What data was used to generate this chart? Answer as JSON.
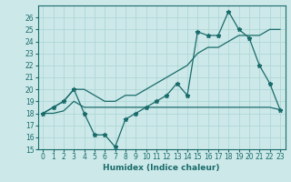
{
  "x": [
    0,
    1,
    2,
    3,
    4,
    5,
    6,
    7,
    8,
    9,
    10,
    11,
    12,
    13,
    14,
    15,
    16,
    17,
    18,
    19,
    20,
    21,
    22,
    23
  ],
  "line_zigzag": [
    18,
    18.5,
    19,
    20,
    18,
    16.2,
    16.2,
    15.2,
    17.5,
    18,
    18.5,
    19,
    19.5,
    20.5,
    19.5,
    24.8,
    24.5,
    24.5,
    26.5,
    25,
    24.3,
    22,
    20.5,
    18.3
  ],
  "line_upper": [
    18,
    18.5,
    19,
    20,
    20,
    19.5,
    19,
    19,
    19.5,
    19.5,
    20,
    20.5,
    21,
    21.5,
    22,
    23,
    23.5,
    23.5,
    24,
    24.5,
    24.5,
    24.5,
    25,
    25
  ],
  "line_lower": [
    18,
    18,
    18.2,
    19,
    18.5,
    18.5,
    18.5,
    18.5,
    18.5,
    18.5,
    18.5,
    18.5,
    18.5,
    18.5,
    18.5,
    18.5,
    18.5,
    18.5,
    18.5,
    18.5,
    18.5,
    18.5,
    18.5,
    18.3
  ],
  "color": "#1a6b6b",
  "bg_color": "#cce8e8",
  "grid_color": "#aad4d4",
  "xlabel": "Humidex (Indice chaleur)",
  "ylim": [
    15,
    27
  ],
  "xlim": [
    -0.5,
    23.5
  ],
  "yticks": [
    15,
    16,
    17,
    18,
    19,
    20,
    21,
    22,
    23,
    24,
    25,
    26
  ],
  "xticks": [
    0,
    1,
    2,
    3,
    4,
    5,
    6,
    7,
    8,
    9,
    10,
    11,
    12,
    13,
    14,
    15,
    16,
    17,
    18,
    19,
    20,
    21,
    22,
    23
  ],
  "tick_fontsize": 5.5,
  "xlabel_fontsize": 6.5
}
